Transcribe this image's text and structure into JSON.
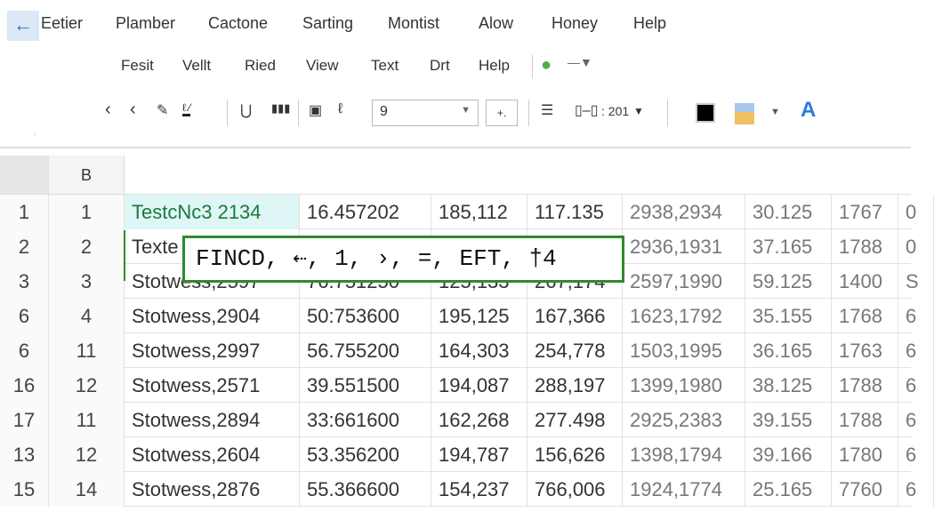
{
  "menu": [
    "Eetier",
    "Plamber",
    "Cactone",
    "Sarting",
    "Montist",
    "Alow",
    "Honey",
    "Help"
  ],
  "submenu": [
    "Fesit",
    "Vellt",
    "Ried",
    "View",
    "Text",
    "Drt",
    "Help"
  ],
  "toolbar": {
    "font_size": "9",
    "size_option": "+.",
    "spacing": ": 201",
    "colors": {
      "accent": "#2e8b2e",
      "fill": "#f0c060",
      "font": "#2a7ae2"
    }
  },
  "columns": [
    "B"
  ],
  "formula_tooltip": "FINCD, ⇠, 1, ›, =, EFT, †4",
  "rows": [
    [
      "1",
      "1",
      "TestcNc3 2134",
      "16.457202",
      "185,112",
      "117.135",
      "2938,2934",
      "30.125",
      "1767",
      "0"
    ],
    [
      "2",
      "2",
      "Texte",
      "",
      "",
      "",
      "2936,1931",
      "37.165",
      "1788",
      "0"
    ],
    [
      "3",
      "3",
      "Stotwess,2597",
      "76.751250",
      "125,133",
      "267,174",
      "2597,1990",
      "59.125",
      "1400",
      "S"
    ],
    [
      "6",
      "4",
      "Stotwess,2904",
      "50:753600",
      "195,125",
      "167,366",
      "1623,1792",
      "35.155",
      "1768",
      "6"
    ],
    [
      "6",
      "11",
      "Stotwess,2997",
      "56.755200",
      "164,303",
      "254,778",
      "1503,1995",
      "36.165",
      "1763",
      "6"
    ],
    [
      "16",
      "12",
      "Stotwess,2571",
      "39.551500",
      "194,087",
      "288,197",
      "1399,1980",
      "38.125",
      "1788",
      "6"
    ],
    [
      "17",
      "11",
      "Stotwess,2894",
      "33:661600",
      "162,268",
      "277.498",
      "2925,2383",
      "39.155",
      "1788",
      "6"
    ],
    [
      "13",
      "12",
      "Stotwess,2604",
      "53.356200",
      "194,787",
      "156,626",
      "1398,1794",
      "39.166",
      "1780",
      "6"
    ],
    [
      "15",
      "14",
      "Stotwess,2876",
      "55.366600",
      "154,237",
      "766,006",
      "1924,1774",
      "25.165",
      "7760",
      "6"
    ]
  ]
}
